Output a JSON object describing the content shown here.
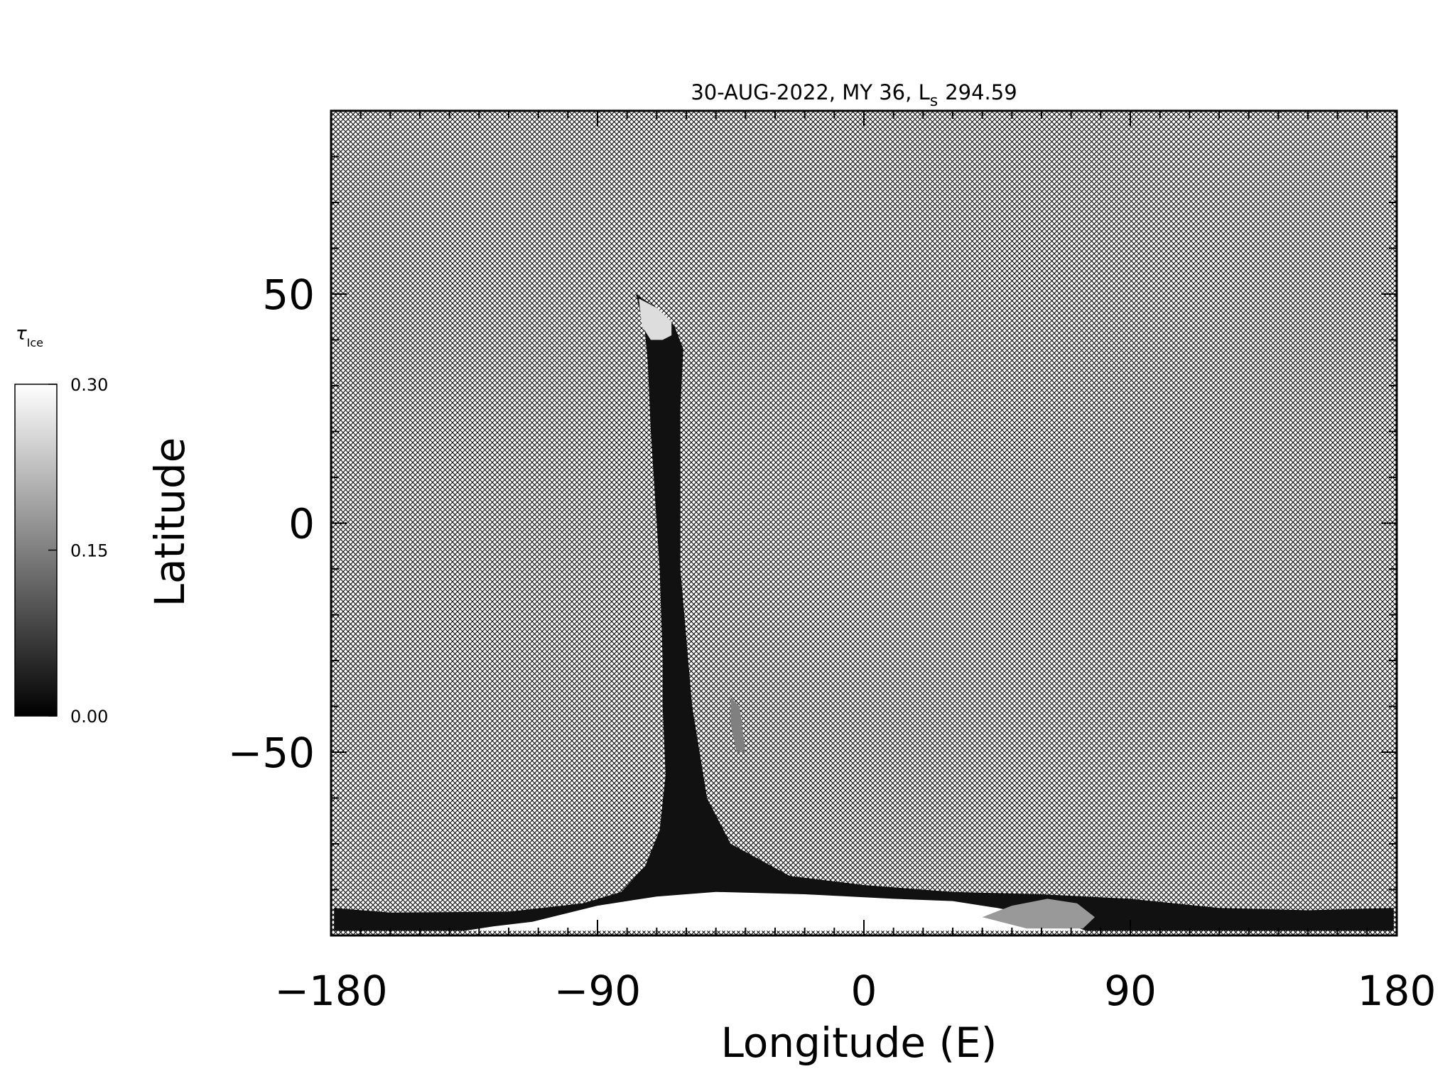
{
  "chart_data": {
    "type": "heatmap",
    "title": "30-AUG-2022, MY 36,  L",
    "title_subscript": "s",
    "title_ls_value": "294.59",
    "xlabel": "Longitude (E)",
    "ylabel": "Latitude",
    "xlim": [
      -180,
      180
    ],
    "ylim": [
      -90,
      90
    ],
    "x_ticks": [
      -180,
      -90,
      0,
      90,
      180
    ],
    "x_tick_labels": [
      "−180",
      "−90",
      "0",
      "90",
      "180"
    ],
    "y_ticks": [
      -50,
      0,
      50
    ],
    "y_tick_labels": [
      "−50",
      "0",
      "50"
    ],
    "x_minor_step": 10,
    "y_minor_step": 10,
    "no_data_fill": "crosshatch",
    "colorbar": {
      "label": "τ",
      "label_subscript": "Ice",
      "range": [
        0.0,
        0.3
      ],
      "ticks": [
        0.0,
        0.15,
        0.3
      ],
      "tick_labels": [
        "0.00",
        "0.15",
        "0.30"
      ],
      "colormap": "grayscale",
      "low_color": "#000000",
      "high_color": "#ffffff"
    },
    "data_regions": [
      {
        "name": "swath",
        "value": 0.02,
        "polygon_lon_lat": [
          [
            -77,
            50
          ],
          [
            -70,
            47
          ],
          [
            -65,
            44
          ],
          [
            -64,
            43
          ],
          [
            -61,
            38
          ],
          [
            -62,
            25
          ],
          [
            -62,
            -10
          ],
          [
            -58,
            -40
          ],
          [
            -53,
            -60
          ],
          [
            -45,
            -70
          ],
          [
            -25,
            -77
          ],
          [
            0,
            -79
          ],
          [
            30,
            -80.5
          ],
          [
            60,
            -81
          ],
          [
            90,
            -82
          ],
          [
            120,
            -84
          ],
          [
            150,
            -84.5
          ],
          [
            179,
            -84
          ],
          [
            179,
            -89
          ],
          [
            -179,
            -89
          ],
          [
            -179,
            -84
          ],
          [
            -160,
            -85
          ],
          [
            -120,
            -84.8
          ],
          [
            -95,
            -83
          ],
          [
            -82,
            -80.5
          ],
          [
            -74,
            -75
          ],
          [
            -69,
            -67
          ],
          [
            -67,
            -55
          ],
          [
            -68,
            -40
          ],
          [
            -68,
            -30
          ],
          [
            -69,
            -10
          ],
          [
            -70,
            0
          ],
          [
            -72,
            20
          ],
          [
            -73,
            35
          ],
          [
            -74,
            42
          ]
        ]
      },
      {
        "name": "north-tip-bright-cap",
        "value": 0.26,
        "polygon_lon_lat": [
          [
            -76,
            49
          ],
          [
            -70,
            47
          ],
          [
            -65,
            44
          ],
          [
            -65,
            41
          ],
          [
            -68,
            40
          ],
          [
            -72,
            40
          ],
          [
            -75,
            43
          ]
        ]
      },
      {
        "name": "south-polar-bright-region",
        "value": 0.3,
        "polygon_lon_lat": [
          [
            -112,
            -87
          ],
          [
            -90,
            -83.5
          ],
          [
            -70,
            -81.5
          ],
          [
            -50,
            -80.5
          ],
          [
            -20,
            -81
          ],
          [
            10,
            -82
          ],
          [
            30,
            -82.5
          ],
          [
            45,
            -84
          ],
          [
            65,
            -86.5
          ],
          [
            75,
            -89
          ],
          [
            -135,
            -89
          ],
          [
            -125,
            -88
          ]
        ]
      },
      {
        "name": "south-polar-streaked-region",
        "value": 0.18,
        "polygon_lon_lat": [
          [
            40,
            -86
          ],
          [
            50,
            -83.5
          ],
          [
            62,
            -82
          ],
          [
            72,
            -83
          ],
          [
            78,
            -86
          ],
          [
            74,
            -88.5
          ],
          [
            55,
            -88.5
          ]
        ]
      },
      {
        "name": "mid-swath-gap",
        "value": 0.15,
        "polygon_lon_lat": [
          [
            -45,
            -38
          ],
          [
            -42,
            -40
          ],
          [
            -40,
            -50
          ],
          [
            -43,
            -50
          ],
          [
            -45,
            -44
          ]
        ]
      }
    ]
  }
}
